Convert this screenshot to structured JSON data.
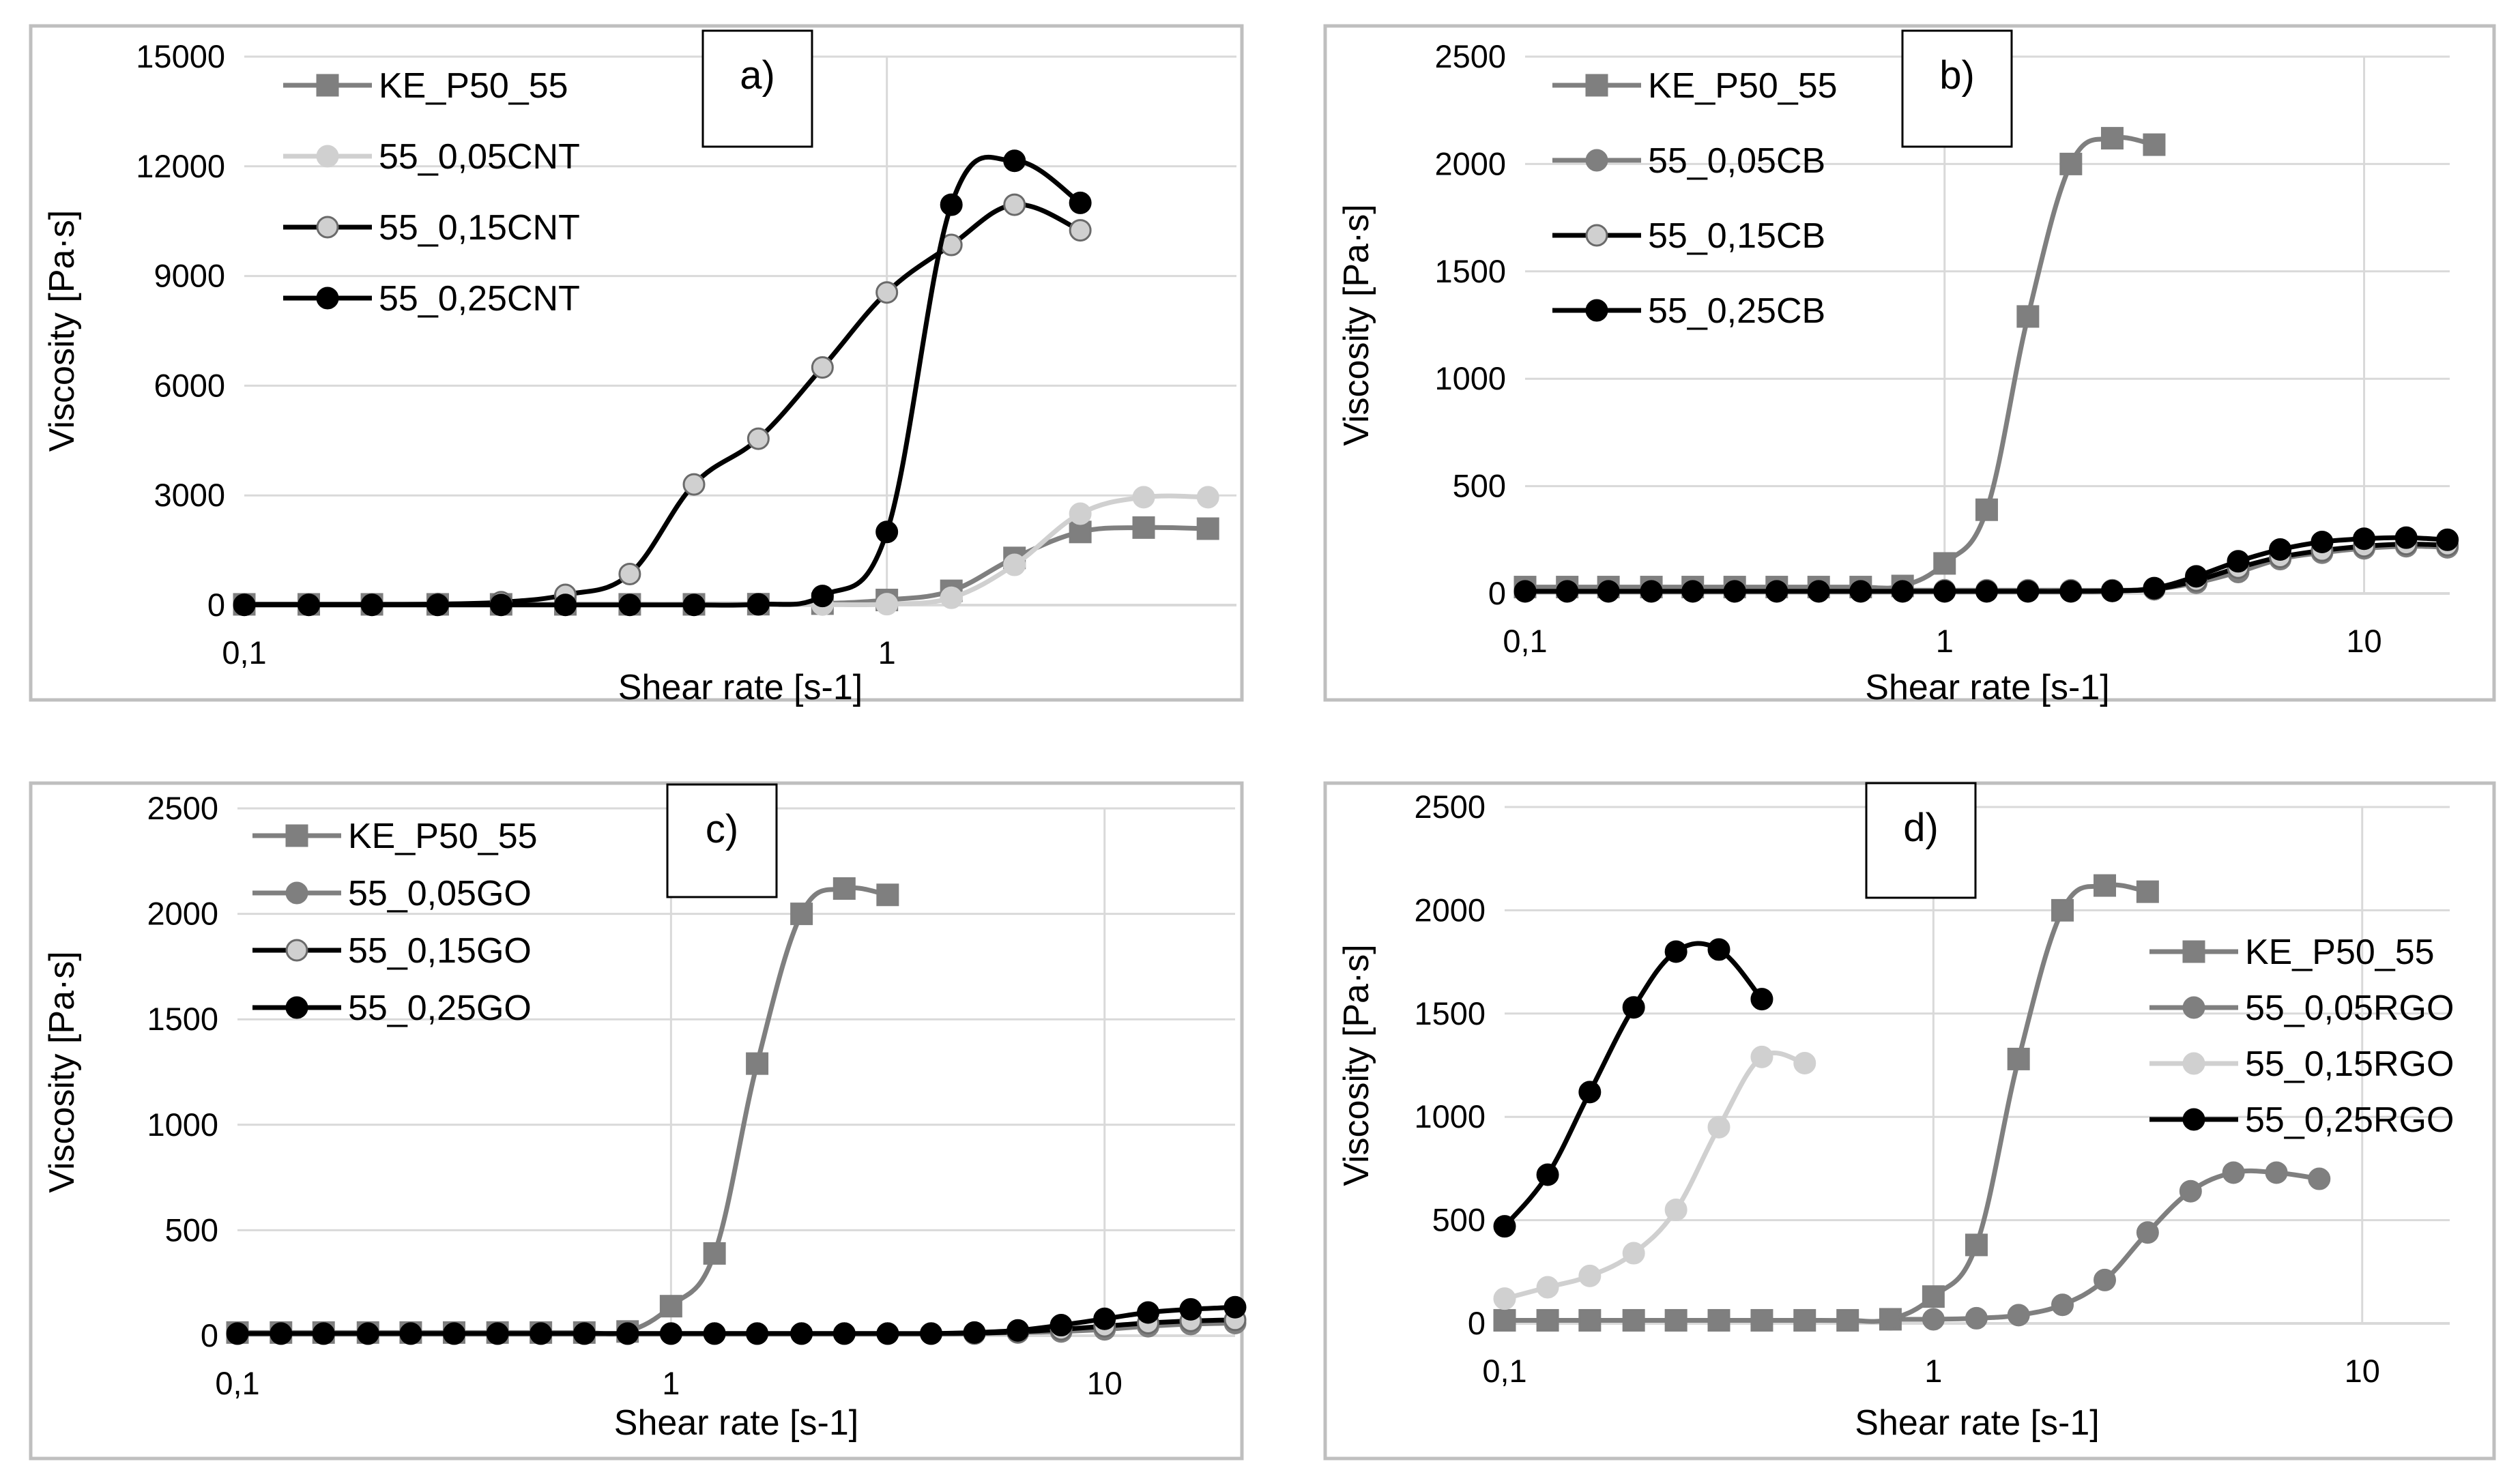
{
  "colors": {
    "dark_gray": "#7f7f7f",
    "light_gray": "#d0d0d0",
    "black": "#000000",
    "grid": "#d9d9d9",
    "frame": "#bfbfbf"
  },
  "chart_data": [
    {
      "type": "line",
      "panel_label": "a)",
      "xscale": "log",
      "xlim": [
        0.1,
        3.5
      ],
      "ylim": [
        0,
        15000
      ],
      "xticks": [
        {
          "value": 0.1,
          "label": "0,1"
        },
        {
          "value": 1,
          "label": "1"
        }
      ],
      "yticks": [
        {
          "value": 0,
          "label": "0"
        },
        {
          "value": 3000,
          "label": "3000"
        },
        {
          "value": 6000,
          "label": "6000"
        },
        {
          "value": 9000,
          "label": "9000"
        },
        {
          "value": 12000,
          "label": "12000"
        },
        {
          "value": 15000,
          "label": "15000"
        }
      ],
      "xlabel": "Shear rate [s-1]",
      "ylabel": "Viscosity [Pa·s]",
      "legend_position": "top-left",
      "series": [
        {
          "name": "KE_P50_55",
          "style": "dark-square",
          "x": [
            0.1,
            0.126,
            0.158,
            0.2,
            0.251,
            0.316,
            0.398,
            0.501,
            0.631,
            0.794,
            1.0,
            1.26,
            1.58,
            2.0,
            2.51,
            3.16
          ],
          "y": [
            20,
            20,
            20,
            20,
            20,
            20,
            20,
            20,
            25,
            40,
            140,
            390,
            1290,
            2000,
            2120,
            2090
          ]
        },
        {
          "name": "55_0,05CNT",
          "style": "light-circle",
          "x": [
            0.1,
            0.126,
            0.158,
            0.2,
            0.251,
            0.316,
            0.398,
            0.501,
            0.631,
            0.794,
            1.0,
            1.26,
            1.58,
            2.0,
            2.51,
            3.16
          ],
          "y": [
            10,
            10,
            10,
            10,
            10,
            10,
            10,
            10,
            10,
            15,
            25,
            200,
            1100,
            2500,
            2950,
            2950
          ]
        },
        {
          "name": "55_0,15CNT",
          "style": "black-line-light-circle",
          "x": [
            0.1,
            0.126,
            0.158,
            0.2,
            0.251,
            0.316,
            0.398,
            0.501,
            0.631,
            0.794,
            1.0,
            1.26,
            1.58,
            2.0
          ],
          "y": [
            20,
            20,
            20,
            30,
            80,
            280,
            850,
            3300,
            4550,
            6500,
            8550,
            9850,
            10950,
            10250
          ]
        },
        {
          "name": "55_0,25CNT",
          "style": "black-circle",
          "x": [
            0.1,
            0.126,
            0.158,
            0.2,
            0.251,
            0.316,
            0.398,
            0.501,
            0.631,
            0.794,
            1.0,
            1.26,
            1.58,
            2.0
          ],
          "y": [
            5,
            5,
            5,
            5,
            5,
            5,
            5,
            5,
            20,
            250,
            2000,
            10950,
            12150,
            11000
          ]
        }
      ]
    },
    {
      "type": "line",
      "panel_label": "b)",
      "xscale": "log",
      "xlim": [
        0.1,
        16
      ],
      "ylim": [
        0,
        2500
      ],
      "xticks": [
        {
          "value": 0.1,
          "label": "0,1"
        },
        {
          "value": 1,
          "label": "1"
        },
        {
          "value": 10,
          "label": "10"
        }
      ],
      "yticks": [
        {
          "value": 0,
          "label": "0"
        },
        {
          "value": 500,
          "label": "500"
        },
        {
          "value": 1000,
          "label": "1000"
        },
        {
          "value": 1500,
          "label": "1500"
        },
        {
          "value": 2000,
          "label": "2000"
        },
        {
          "value": 2500,
          "label": "2500"
        }
      ],
      "xlabel": "Shear rate [s-1]",
      "ylabel": "Viscosity [Pa·s]",
      "legend_position": "top-left",
      "series": [
        {
          "name": "KE_P50_55",
          "style": "dark-square",
          "x": [
            0.1,
            0.126,
            0.158,
            0.2,
            0.251,
            0.316,
            0.398,
            0.501,
            0.631,
            0.794,
            1.0,
            1.26,
            1.58,
            2.0,
            2.51,
            3.16
          ],
          "y": [
            30,
            30,
            30,
            30,
            30,
            30,
            30,
            30,
            30,
            35,
            140,
            390,
            1290,
            2000,
            2120,
            2090
          ]
        },
        {
          "name": "55_0,05CB",
          "style": "dark-circle",
          "x": [
            0.1,
            0.126,
            0.158,
            0.2,
            0.251,
            0.316,
            0.398,
            0.501,
            0.631,
            0.794,
            1.0,
            1.26,
            1.58,
            2.0,
            2.51,
            3.16,
            3.98,
            5.01,
            6.31,
            7.94,
            10.0,
            12.6,
            15.8
          ],
          "y": [
            15,
            15,
            15,
            15,
            15,
            15,
            15,
            15,
            15,
            15,
            15,
            15,
            15,
            15,
            15,
            20,
            50,
            100,
            160,
            190,
            210,
            220,
            215
          ]
        },
        {
          "name": "55_0,15CB",
          "style": "black-line-light-circle",
          "x": [
            0.1,
            0.126,
            0.158,
            0.2,
            0.251,
            0.316,
            0.398,
            0.501,
            0.631,
            0.794,
            1.0,
            1.26,
            1.58,
            2.0,
            2.51,
            3.16,
            3.98,
            5.01,
            6.31,
            7.94,
            10.0,
            12.6,
            15.8
          ],
          "y": [
            10,
            10,
            10,
            10,
            10,
            10,
            10,
            10,
            10,
            10,
            10,
            10,
            10,
            10,
            12,
            20,
            60,
            120,
            170,
            200,
            220,
            230,
            225
          ]
        },
        {
          "name": "55_0,25CB",
          "style": "black-circle",
          "x": [
            0.1,
            0.126,
            0.158,
            0.2,
            0.251,
            0.316,
            0.398,
            0.501,
            0.631,
            0.794,
            1.0,
            1.26,
            1.58,
            2.0,
            2.51,
            3.16,
            3.98,
            5.01,
            6.31,
            7.94,
            10.0,
            12.6,
            15.8
          ],
          "y": [
            10,
            10,
            10,
            10,
            10,
            10,
            10,
            10,
            10,
            10,
            10,
            10,
            10,
            10,
            12,
            25,
            80,
            150,
            205,
            240,
            255,
            260,
            250
          ]
        }
      ]
    },
    {
      "type": "line",
      "panel_label": "c)",
      "xscale": "log",
      "xlim": [
        0.1,
        20
      ],
      "ylim": [
        0,
        2500
      ],
      "xticks": [
        {
          "value": 0.1,
          "label": "0,1"
        },
        {
          "value": 1,
          "label": "1"
        },
        {
          "value": 10,
          "label": "10"
        }
      ],
      "yticks": [
        {
          "value": 0,
          "label": "0"
        },
        {
          "value": 500,
          "label": "500"
        },
        {
          "value": 1000,
          "label": "1000"
        },
        {
          "value": 1500,
          "label": "1500"
        },
        {
          "value": 2000,
          "label": "2000"
        },
        {
          "value": 2500,
          "label": "2500"
        }
      ],
      "xlabel": "Shear rate [s-1]",
      "ylabel": "Viscosity [Pa·s]",
      "legend_position": "top-left",
      "series": [
        {
          "name": "KE_P50_55",
          "style": "dark-square",
          "x": [
            0.1,
            0.126,
            0.158,
            0.2,
            0.251,
            0.316,
            0.398,
            0.501,
            0.631,
            0.794,
            1.0,
            1.26,
            1.58,
            2.0,
            2.51,
            3.16
          ],
          "y": [
            15,
            15,
            15,
            15,
            15,
            15,
            15,
            15,
            15,
            20,
            140,
            390,
            1290,
            2000,
            2120,
            2090
          ]
        },
        {
          "name": "55_0,05GO",
          "style": "dark-circle",
          "x": [
            0.1,
            0.126,
            0.158,
            0.2,
            0.251,
            0.316,
            0.398,
            0.501,
            0.631,
            0.794,
            1.0,
            1.26,
            1.58,
            2.0,
            2.51,
            3.16,
            3.98,
            5.01,
            6.31,
            7.94,
            10.0,
            12.6,
            15.8,
            20.0
          ],
          "y": [
            10,
            10,
            10,
            10,
            10,
            10,
            10,
            10,
            10,
            10,
            10,
            10,
            10,
            10,
            10,
            10,
            10,
            10,
            15,
            20,
            30,
            45,
            55,
            60
          ]
        },
        {
          "name": "55_0,15GO",
          "style": "black-line-light-circle",
          "x": [
            0.1,
            0.126,
            0.158,
            0.2,
            0.251,
            0.316,
            0.398,
            0.501,
            0.631,
            0.794,
            1.0,
            1.26,
            1.58,
            2.0,
            2.51,
            3.16,
            3.98,
            5.01,
            6.31,
            7.94,
            10.0,
            12.6,
            15.8,
            20.0
          ],
          "y": [
            10,
            10,
            10,
            10,
            10,
            10,
            10,
            10,
            10,
            10,
            10,
            10,
            10,
            10,
            10,
            10,
            10,
            12,
            18,
            30,
            45,
            60,
            70,
            75
          ]
        },
        {
          "name": "55_0,25GO",
          "style": "black-circle",
          "x": [
            0.1,
            0.126,
            0.158,
            0.2,
            0.251,
            0.316,
            0.398,
            0.501,
            0.631,
            0.794,
            1.0,
            1.26,
            1.58,
            2.0,
            2.51,
            3.16,
            3.98,
            5.01,
            6.31,
            7.94,
            10.0,
            12.6,
            15.8,
            20.0
          ],
          "y": [
            10,
            10,
            10,
            10,
            10,
            10,
            10,
            10,
            10,
            10,
            10,
            10,
            10,
            10,
            10,
            10,
            10,
            15,
            25,
            50,
            80,
            110,
            125,
            135
          ]
        }
      ]
    },
    {
      "type": "line",
      "panel_label": "d)",
      "xscale": "log",
      "xlim": [
        0.1,
        16
      ],
      "ylim": [
        0,
        2500
      ],
      "xticks": [
        {
          "value": 0.1,
          "label": "0,1"
        },
        {
          "value": 1,
          "label": "1"
        },
        {
          "value": 10,
          "label": "10"
        }
      ],
      "yticks": [
        {
          "value": 0,
          "label": "0"
        },
        {
          "value": 500,
          "label": "500"
        },
        {
          "value": 1000,
          "label": "1000"
        },
        {
          "value": 1500,
          "label": "1500"
        },
        {
          "value": 2000,
          "label": "2000"
        },
        {
          "value": 2500,
          "label": "2500"
        }
      ],
      "xlabel": "Shear rate [s-1]",
      "ylabel": "Viscosity [Pa·s]",
      "legend_position": "right",
      "series": [
        {
          "name": "KE_P50_55",
          "style": "dark-square",
          "x": [
            0.1,
            0.126,
            0.158,
            0.2,
            0.251,
            0.316,
            0.398,
            0.501,
            0.631,
            0.794,
            1.0,
            1.26,
            1.58,
            2.0,
            2.51,
            3.16
          ],
          "y": [
            15,
            15,
            15,
            15,
            15,
            15,
            15,
            15,
            15,
            20,
            130,
            380,
            1280,
            2000,
            2120,
            2090
          ]
        },
        {
          "name": "55_0,05RGO",
          "style": "dark-circle",
          "x": [
            0.794,
            1.0,
            1.26,
            1.58,
            2.0,
            2.51,
            3.16,
            3.98,
            5.01,
            6.31,
            7.94
          ],
          "y": [
            20,
            20,
            25,
            40,
            90,
            210,
            440,
            640,
            730,
            730,
            700
          ]
        },
        {
          "name": "55_0,15RGO",
          "style": "light-circle",
          "x": [
            0.1,
            0.126,
            0.158,
            0.2,
            0.251,
            0.316,
            0.398,
            0.501
          ],
          "y": [
            120,
            175,
            230,
            340,
            550,
            950,
            1290,
            1260
          ]
        },
        {
          "name": "55_0,25RGO",
          "style": "black-circle",
          "x": [
            0.1,
            0.126,
            0.158,
            0.2,
            0.251,
            0.316,
            0.398
          ],
          "y": [
            470,
            720,
            1120,
            1530,
            1800,
            1810,
            1570
          ]
        }
      ]
    }
  ]
}
